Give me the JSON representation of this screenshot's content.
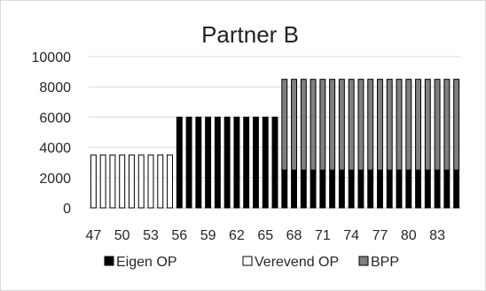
{
  "chart_data": {
    "type": "bar",
    "stacked": true,
    "title": "Partner B",
    "xlabel": "",
    "ylabel": "",
    "ylim": [
      0,
      10000
    ],
    "yticks": [
      "0",
      "2000",
      "4000",
      "6000",
      "8000",
      "10000"
    ],
    "grid": true,
    "legend_position": "bottom",
    "categories": [
      47,
      48,
      49,
      50,
      51,
      52,
      53,
      54,
      55,
      56,
      57,
      58,
      59,
      60,
      61,
      62,
      63,
      64,
      65,
      66,
      67,
      68,
      69,
      70,
      71,
      72,
      73,
      74,
      75,
      76,
      77,
      78,
      79,
      80,
      81,
      82,
      83,
      84,
      85
    ],
    "xtick_labels": [
      "47",
      "50",
      "53",
      "56",
      "59",
      "62",
      "65",
      "68",
      "71",
      "74",
      "77",
      "80",
      "83"
    ],
    "series": [
      {
        "name": "Eigen OP",
        "color": "#000000",
        "values": [
          0,
          0,
          0,
          0,
          0,
          0,
          0,
          0,
          0,
          6000,
          6000,
          6000,
          6000,
          6000,
          6000,
          6000,
          6000,
          6000,
          6000,
          6000,
          2500,
          2500,
          2500,
          2500,
          2500,
          2500,
          2500,
          2500,
          2500,
          2500,
          2500,
          2500,
          2500,
          2500,
          2500,
          2500,
          2500,
          2500,
          2500
        ]
      },
      {
        "name": "Verevend OP",
        "color": "#ffffff",
        "values": [
          3500,
          3500,
          3500,
          3500,
          3500,
          3500,
          3500,
          3500,
          3500,
          0,
          0,
          0,
          0,
          0,
          0,
          0,
          0,
          0,
          0,
          0,
          0,
          0,
          0,
          0,
          0,
          0,
          0,
          0,
          0,
          0,
          0,
          0,
          0,
          0,
          0,
          0,
          0,
          0,
          0
        ]
      },
      {
        "name": "BPP",
        "color": "#7f7f7f",
        "values": [
          0,
          0,
          0,
          0,
          0,
          0,
          0,
          0,
          0,
          0,
          0,
          0,
          0,
          0,
          0,
          0,
          0,
          0,
          0,
          0,
          6000,
          6000,
          6000,
          6000,
          6000,
          6000,
          6000,
          6000,
          6000,
          6000,
          6000,
          6000,
          6000,
          6000,
          6000,
          6000,
          6000,
          6000,
          6000
        ]
      }
    ]
  }
}
